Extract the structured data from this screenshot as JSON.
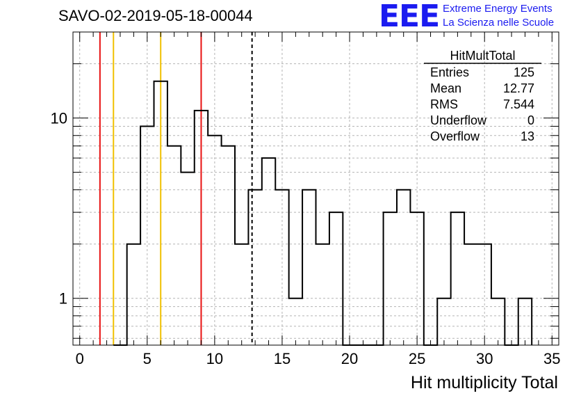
{
  "header": {
    "title": "SAVO-02-2019-05-18-00044",
    "logo_text": "EEE",
    "logo_line1": "Extreme Energy Events",
    "logo_line2": "La Scienza nelle Scuole",
    "logo_color": "#1b1bf0"
  },
  "stats": {
    "name": "HitMultTotal",
    "rows": [
      {
        "label": "Entries",
        "value": "125"
      },
      {
        "label": "Mean",
        "value": "12.77"
      },
      {
        "label": "RMS",
        "value": "7.544"
      },
      {
        "label": "Underflow",
        "value": "0"
      },
      {
        "label": "Overflow",
        "value": "13"
      }
    ]
  },
  "chart_data": {
    "type": "histogram",
    "title": "SAVO-02-2019-05-18-00044",
    "xlabel": "Hit multiplicity Total",
    "ylabel": "",
    "xlim": [
      -0.5,
      35.5
    ],
    "ylim": [
      0.55,
      30
    ],
    "yscale": "log",
    "bin_width": 1,
    "x_ticks": [
      0,
      5,
      10,
      15,
      20,
      25,
      30,
      35
    ],
    "y_ticks": [
      1,
      10
    ],
    "bin_centers": [
      3,
      4,
      5,
      6,
      7,
      8,
      9,
      10,
      11,
      12,
      13,
      14,
      15,
      16,
      17,
      18,
      19,
      20,
      21,
      22,
      23,
      24,
      25,
      26,
      27,
      28,
      29,
      30,
      31,
      32,
      33
    ],
    "counts": [
      0,
      2,
      9,
      16,
      7,
      5,
      11,
      8,
      7,
      2,
      4,
      6,
      4,
      1,
      4,
      2,
      3,
      0,
      0,
      0,
      3,
      4,
      3,
      0,
      1,
      3,
      2,
      2,
      1,
      0,
      1
    ],
    "grid": true,
    "vertical_lines": [
      {
        "x": 1.5,
        "color": "#e81010",
        "style": "solid"
      },
      {
        "x": 2.5,
        "color": "#f0c000",
        "style": "solid"
      },
      {
        "x": 6,
        "color": "#f0c000",
        "style": "solid"
      },
      {
        "x": 9,
        "color": "#e81010",
        "style": "solid"
      },
      {
        "x": 12.77,
        "color": "#000000",
        "style": "dashed"
      }
    ]
  }
}
